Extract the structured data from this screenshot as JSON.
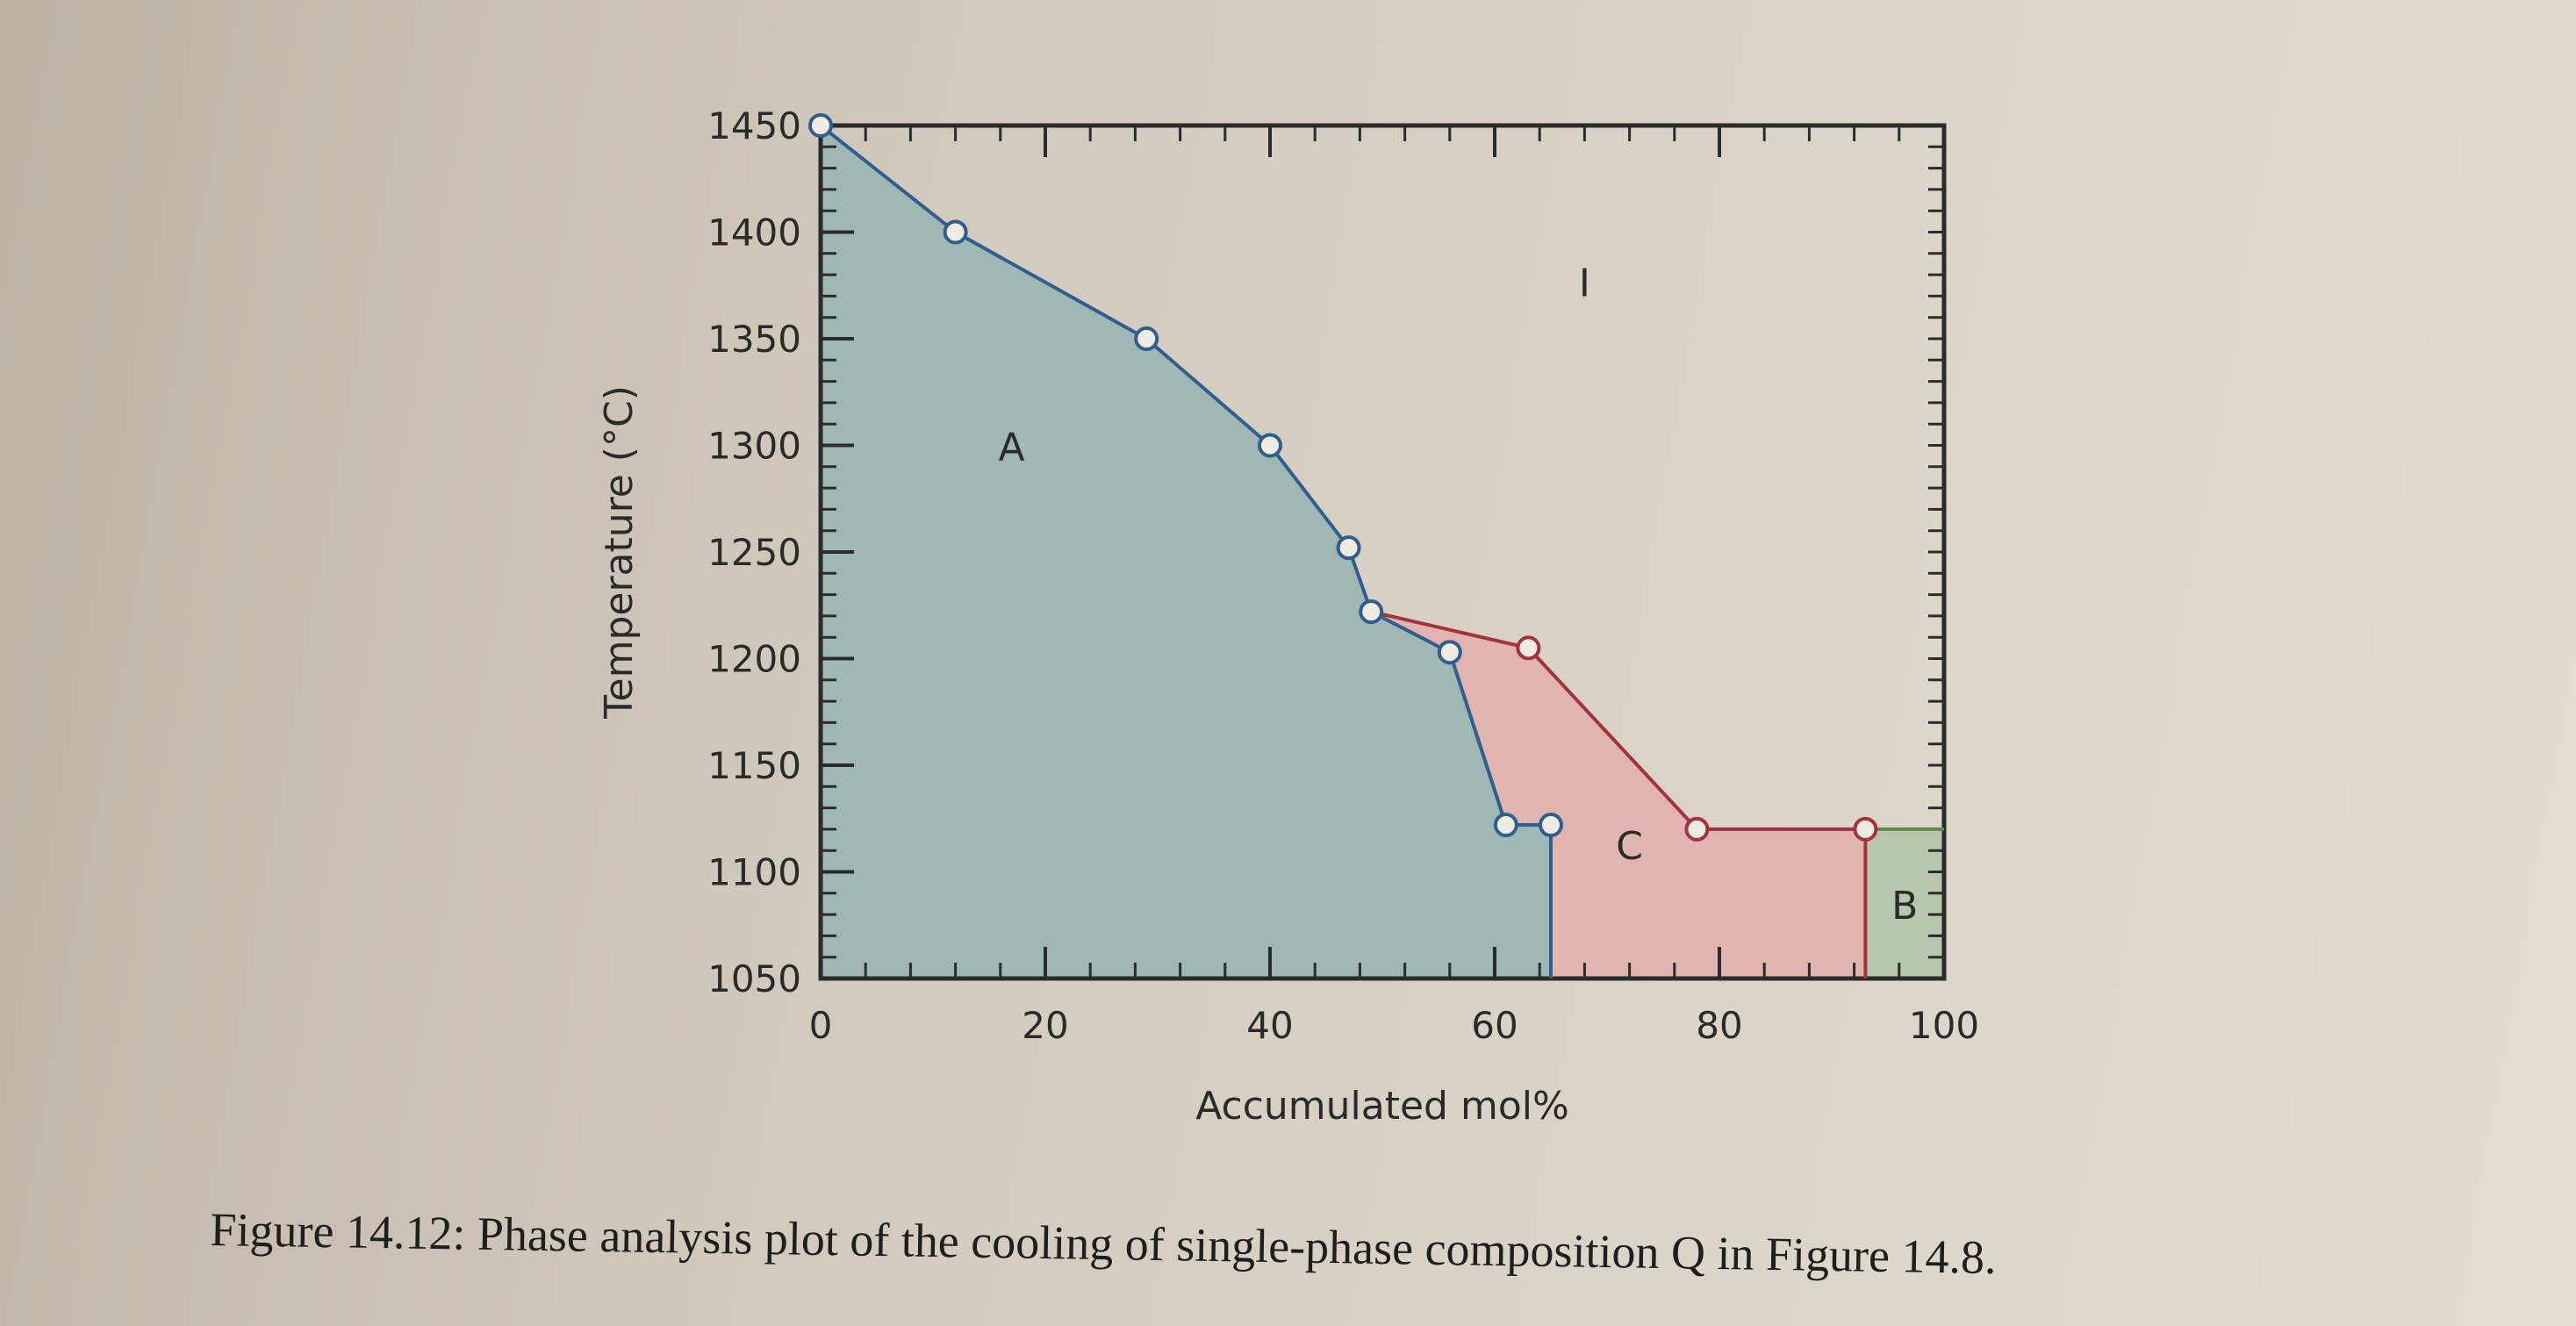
{
  "chart_data": {
    "type": "line",
    "title": "",
    "xlabel": "Accumulated mol%",
    "ylabel": "Temperature (°C)",
    "xlim": [
      0,
      100
    ],
    "ylim": [
      1050,
      1450
    ],
    "x_ticks": [
      0,
      20,
      40,
      60,
      80,
      100
    ],
    "y_ticks": [
      1050,
      1100,
      1150,
      1200,
      1250,
      1300,
      1350,
      1400,
      1450
    ],
    "grid": false,
    "legend": "none",
    "colors": {
      "A": "#9fb8b4",
      "C": "#e2b4b0",
      "B": "#b7c7ab",
      "blue_line": "#2f5f8f",
      "red_line": "#a4323c",
      "green_line": "#5f8a52"
    },
    "series": [
      {
        "name": "A",
        "values_xy": [
          [
            0,
            1450
          ],
          [
            12,
            1400
          ],
          [
            29,
            1350
          ],
          [
            40,
            1300
          ],
          [
            47,
            1252
          ],
          [
            49,
            1222
          ],
          [
            56,
            1203
          ],
          [
            61,
            1122
          ],
          [
            65,
            1122
          ],
          [
            65,
            1050
          ]
        ]
      },
      {
        "name": "C",
        "values_xy": [
          [
            49,
            1222
          ],
          [
            63,
            1205
          ],
          [
            78,
            1120
          ],
          [
            93,
            1120
          ],
          [
            93,
            1050
          ]
        ]
      },
      {
        "name": "B",
        "values_xy": [
          [
            93,
            1120
          ],
          [
            100,
            1120
          ]
        ]
      }
    ],
    "markers_blue": [
      [
        0,
        1450
      ],
      [
        12,
        1400
      ],
      [
        29,
        1350
      ],
      [
        40,
        1300
      ],
      [
        47,
        1252
      ],
      [
        49,
        1222
      ],
      [
        56,
        1203
      ],
      [
        61,
        1122
      ],
      [
        65,
        1122
      ]
    ],
    "markers_red": [
      [
        63,
        1205
      ],
      [
        78,
        1120
      ],
      [
        93,
        1120
      ]
    ],
    "region_labels": [
      {
        "text": "A",
        "x": 17,
        "y": 1293
      },
      {
        "text": "I",
        "x": 68,
        "y": 1370
      },
      {
        "text": "C",
        "x": 72,
        "y": 1106
      },
      {
        "text": "B",
        "x": 96.5,
        "y": 1078
      }
    ]
  },
  "caption": "Figure 14.12: Phase analysis plot of the cooling of single-phase composition Q in Figure 14.8."
}
